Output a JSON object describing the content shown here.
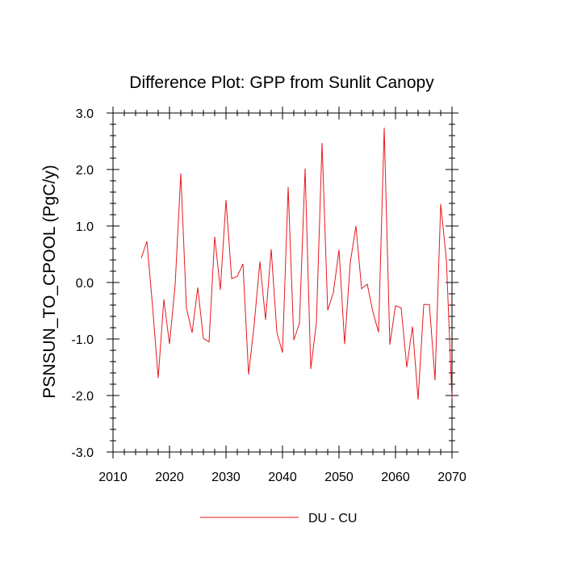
{
  "chart_data": {
    "type": "line",
    "title": "Difference Plot: GPP from Sunlit Canopy",
    "xlabel": "",
    "ylabel": "PSNSUN_TO_CPOOL  (PgC/y)",
    "xlim": [
      2010,
      2070
    ],
    "ylim": [
      -3.0,
      3.0
    ],
    "x_ticks": [
      2010,
      2020,
      2030,
      2040,
      2050,
      2060,
      2070
    ],
    "x_tick_labels": [
      "2010",
      "2020",
      "2030",
      "2040",
      "2050",
      "2060",
      "2070"
    ],
    "y_ticks": [
      -3.0,
      -2.0,
      -1.0,
      0.0,
      1.0,
      2.0,
      3.0
    ],
    "y_tick_labels": [
      "-3.0",
      "-2.0",
      "-1.0",
      "0.0",
      "1.0",
      "2.0",
      "3.0"
    ],
    "grid": false,
    "legend_position": "bottom-center",
    "series": [
      {
        "name": "DU - CU",
        "color": "#e8181e",
        "x": [
          2015,
          2016,
          2017,
          2018,
          2019,
          2020,
          2021,
          2022,
          2023,
          2024,
          2025,
          2026,
          2027,
          2028,
          2029,
          2030,
          2031,
          2032,
          2033,
          2034,
          2035,
          2036,
          2037,
          2038,
          2039,
          2040,
          2041,
          2042,
          2043,
          2044,
          2045,
          2046,
          2047,
          2048,
          2049,
          2050,
          2051,
          2052,
          2053,
          2054,
          2055,
          2056,
          2057,
          2058,
          2059,
          2060,
          2061,
          2062,
          2063,
          2064,
          2065,
          2066,
          2067,
          2068,
          2069,
          2070
        ],
        "values": [
          0.43,
          0.73,
          -0.42,
          -1.69,
          -0.3,
          -1.09,
          -0.04,
          1.93,
          -0.45,
          -0.89,
          -0.09,
          -0.99,
          -1.05,
          0.81,
          -0.13,
          1.46,
          0.07,
          0.11,
          0.33,
          -1.63,
          -0.73,
          0.37,
          -0.66,
          0.59,
          -0.88,
          -1.24,
          1.69,
          -1.02,
          -0.72,
          2.02,
          -1.53,
          -0.71,
          2.47,
          -0.49,
          -0.18,
          0.58,
          -1.09,
          0.36,
          1.0,
          -0.11,
          -0.03,
          -0.52,
          -0.88,
          2.74,
          -1.1,
          -0.41,
          -0.45,
          -1.5,
          -0.78,
          -2.07,
          -0.39,
          -0.39,
          -1.73,
          1.39,
          0.41,
          -2.06
        ]
      }
    ]
  }
}
